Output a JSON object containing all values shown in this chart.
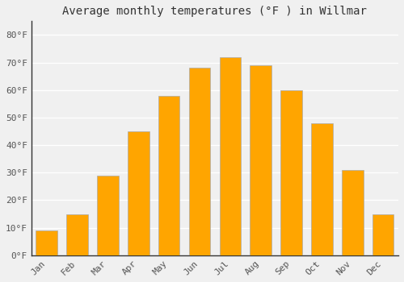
{
  "title": "Average monthly temperatures (°F ) in Willmar",
  "months": [
    "Jan",
    "Feb",
    "Mar",
    "Apr",
    "May",
    "Jun",
    "Jul",
    "Aug",
    "Sep",
    "Oct",
    "Nov",
    "Dec"
  ],
  "values": [
    9,
    15,
    29,
    45,
    58,
    68,
    72,
    69,
    60,
    48,
    31,
    15
  ],
  "bar_color": "#FFA500",
  "bar_edge_color": "#AAAAAA",
  "ylim": [
    0,
    85
  ],
  "yticks": [
    0,
    10,
    20,
    30,
    40,
    50,
    60,
    70,
    80
  ],
  "ytick_labels": [
    "0°F",
    "10°F",
    "20°F",
    "30°F",
    "40°F",
    "50°F",
    "60°F",
    "70°F",
    "80°F"
  ],
  "background_color": "#F0F0F0",
  "grid_color": "#FFFFFF",
  "title_fontsize": 10,
  "tick_fontsize": 8,
  "bar_width": 0.7,
  "figsize": [
    5.0,
    3.5
  ],
  "dpi": 100
}
